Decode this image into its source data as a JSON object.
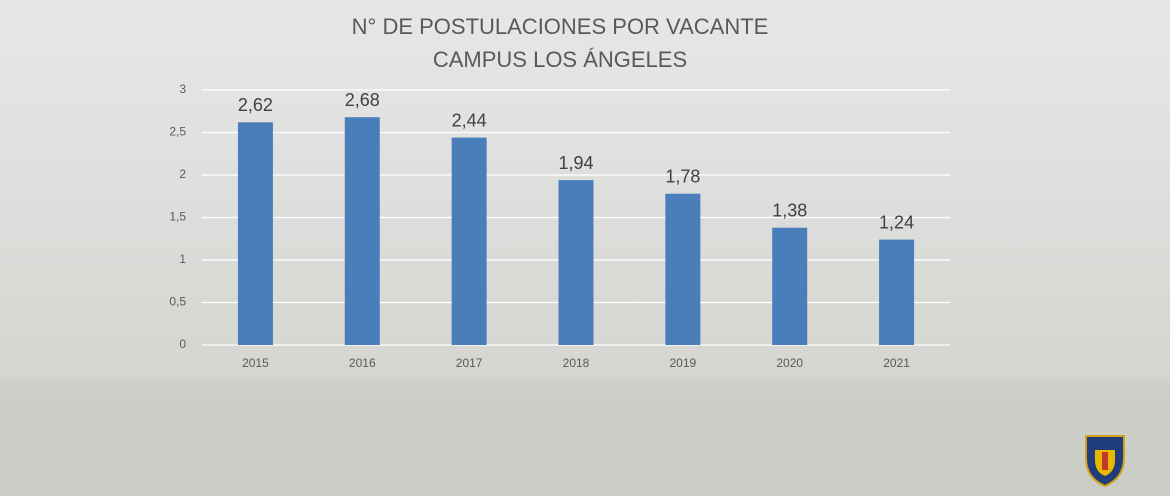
{
  "chart_data": {
    "type": "bar",
    "title": "N° DE POSTULACIONES POR VACANTE",
    "subtitle": "CAMPUS LOS ÁNGELES",
    "categories": [
      "2015",
      "2016",
      "2017",
      "2018",
      "2019",
      "2020",
      "2021"
    ],
    "values": [
      2.62,
      2.68,
      2.44,
      1.94,
      1.78,
      1.38,
      1.24
    ],
    "value_labels": [
      "2,62",
      "2,68",
      "2,44",
      "1,94",
      "1,78",
      "1,38",
      "1,24"
    ],
    "color": "#4a7ebb",
    "ylim": [
      0,
      3
    ],
    "yticks": [
      0,
      {
        "value": 0.5,
        "label": "0,5"
      },
      1,
      {
        "value": 1.5,
        "label": "1,5"
      },
      2,
      {
        "value": 2.5,
        "label": "2,5"
      },
      3
    ],
    "grid": true
  }
}
